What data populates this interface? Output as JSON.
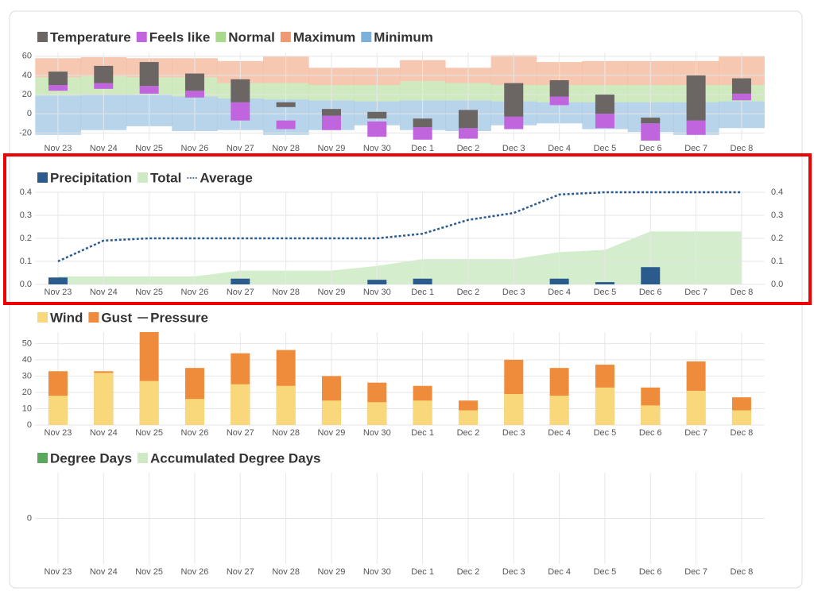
{
  "chart_data": [
    {
      "type": "range",
      "categories": [
        "Nov 23",
        "Nov 24",
        "Nov 25",
        "Nov 26",
        "Nov 27",
        "Nov 28",
        "Nov 29",
        "Nov 30",
        "Dec 1",
        "Dec 2",
        "Dec 3",
        "Dec 4",
        "Dec 5",
        "Dec 6",
        "Dec 7",
        "Dec 8"
      ],
      "ylim": [
        -28,
        64
      ],
      "yticks": [
        -20,
        0,
        20,
        40,
        60
      ],
      "grid": true,
      "series": [
        {
          "name": "Temperature",
          "color": "#6b6563",
          "type": "range-bar",
          "low": [
            30,
            32,
            29,
            24,
            12,
            7,
            -2,
            -5,
            -14,
            -15,
            -3,
            18,
            0,
            -10,
            -7,
            21
          ],
          "high": [
            44,
            50,
            54,
            42,
            36,
            12,
            5,
            2,
            -5,
            4,
            32,
            35,
            20,
            -4,
            40,
            37
          ]
        },
        {
          "name": "Feels like",
          "color": "#c065de",
          "type": "range-bar",
          "low": [
            24,
            26,
            21,
            17,
            -7,
            -16,
            -17,
            -24,
            -27,
            -26,
            -16,
            9,
            -15,
            -28,
            -22,
            14
          ],
          "high": [
            30,
            32,
            29,
            24,
            12,
            -7,
            -2,
            -8,
            -14,
            -15,
            -3,
            18,
            0,
            -10,
            -7,
            21
          ]
        },
        {
          "name": "Normal",
          "color": "#a9d98b",
          "type": "range-area",
          "low": [
            19,
            20,
            20,
            18,
            16,
            15,
            14,
            13,
            14,
            14,
            13,
            12,
            12,
            12,
            12,
            13
          ],
          "high": [
            38,
            39,
            38,
            38,
            32,
            32,
            30,
            30,
            34,
            32,
            30,
            30,
            30,
            30,
            30,
            30
          ]
        },
        {
          "name": "Maximum",
          "color": "#ef9a72",
          "type": "range-area",
          "low": [
            38,
            39,
            38,
            38,
            32,
            32,
            30,
            30,
            34,
            32,
            30,
            30,
            30,
            30,
            30,
            30
          ],
          "high": [
            58,
            59,
            58,
            58,
            55,
            60,
            48,
            48,
            56,
            48,
            61,
            54,
            55,
            55,
            55,
            60
          ]
        },
        {
          "name": "Minimum",
          "color": "#7eb0d8",
          "type": "range-area",
          "low": [
            -22,
            -17,
            -13,
            -18,
            -17,
            -22,
            -17,
            -12,
            -17,
            -18,
            -12,
            -10,
            -16,
            -19,
            -22,
            -15
          ],
          "high": [
            19,
            20,
            20,
            18,
            16,
            15,
            14,
            13,
            14,
            14,
            13,
            12,
            12,
            12,
            12,
            13
          ]
        }
      ]
    },
    {
      "type": "bar",
      "categories": [
        "Nov 23",
        "Nov 24",
        "Nov 25",
        "Nov 26",
        "Nov 27",
        "Nov 28",
        "Nov 29",
        "Nov 30",
        "Dec 1",
        "Dec 2",
        "Dec 3",
        "Dec 4",
        "Dec 5",
        "Dec 6",
        "Dec 7",
        "Dec 8"
      ],
      "ylim": [
        0,
        0.4
      ],
      "yticks": [
        {
          "value": 0,
          "label": "0.0"
        },
        0.1,
        0.2,
        0.3,
        0.4
      ],
      "y2lim": [
        0,
        0.4
      ],
      "y2ticks": [
        {
          "value": 0,
          "label": "0.0"
        },
        0.1,
        0.2,
        0.3,
        0.4
      ],
      "grid": true,
      "series": [
        {
          "name": "Precipitation",
          "color": "#2b5b8c",
          "type": "bar",
          "values": [
            0.03,
            0,
            0,
            0,
            0.025,
            0,
            0,
            0.02,
            0.025,
            0,
            0,
            0.025,
            0.01,
            0.075,
            0,
            0
          ]
        },
        {
          "name": "Total",
          "color": "#cdeac4",
          "type": "area",
          "values": [
            0.035,
            0.035,
            0.035,
            0.035,
            0.06,
            0.06,
            0.06,
            0.08,
            0.11,
            0.11,
            0.11,
            0.14,
            0.15,
            0.23,
            0.23,
            0.23
          ]
        },
        {
          "name": "Average",
          "color": "#2b5b8c",
          "type": "line",
          "dash": true,
          "values": [
            0.1,
            0.19,
            0.2,
            0.2,
            0.2,
            0.2,
            0.2,
            0.2,
            0.22,
            0.28,
            0.31,
            0.39,
            0.4,
            0.4,
            0.4,
            0.4
          ]
        }
      ]
    },
    {
      "type": "bar",
      "categories": [
        "Nov 23",
        "Nov 24",
        "Nov 25",
        "Nov 26",
        "Nov 27",
        "Nov 28",
        "Nov 29",
        "Nov 30",
        "Dec 1",
        "Dec 2",
        "Dec 3",
        "Dec 4",
        "Dec 5",
        "Dec 6",
        "Dec 7",
        "Dec 8"
      ],
      "ylim": [
        0,
        57
      ],
      "yticks": [
        0,
        10,
        20,
        30,
        40,
        50
      ],
      "grid": true,
      "series": [
        {
          "name": "Wind",
          "color": "#f9d77b",
          "type": "bar",
          "values": [
            18,
            32,
            27,
            16,
            25,
            24,
            15,
            14,
            15,
            9,
            19,
            18,
            23,
            12,
            21,
            9
          ]
        },
        {
          "name": "Gust",
          "color": "#ef8c3b",
          "type": "bar",
          "values": [
            33,
            33,
            57,
            35,
            44,
            46,
            30,
            26,
            24,
            15,
            40,
            35,
            37,
            23,
            39,
            17
          ]
        },
        {
          "name": "Pressure",
          "color": "#333333",
          "type": "line",
          "values": [
            null,
            null,
            null,
            null,
            null,
            null,
            null,
            null,
            null,
            null,
            null,
            null,
            null,
            null,
            null,
            null
          ]
        }
      ]
    },
    {
      "type": "bar",
      "categories": [
        "Nov 23",
        "Nov 24",
        "Nov 25",
        "Nov 26",
        "Nov 27",
        "Nov 28",
        "Nov 29",
        "Nov 30",
        "Dec 1",
        "Dec 2",
        "Dec 3",
        "Dec 4",
        "Dec 5",
        "Dec 6",
        "Dec 7",
        "Dec 8"
      ],
      "ylim": [
        -1,
        1
      ],
      "yticks": [
        0
      ],
      "grid": true,
      "series": [
        {
          "name": "Degree Days",
          "color": "#5aa85c",
          "type": "bar",
          "values": [
            null,
            null,
            null,
            null,
            null,
            null,
            null,
            null,
            null,
            null,
            null,
            null,
            null,
            null,
            null,
            null
          ]
        },
        {
          "name": "Accumulated Degree Days",
          "color": "#cdeac4",
          "type": "area",
          "values": [
            null,
            null,
            null,
            null,
            null,
            null,
            null,
            null,
            null,
            null,
            null,
            null,
            null,
            null,
            null,
            null
          ]
        }
      ]
    }
  ]
}
